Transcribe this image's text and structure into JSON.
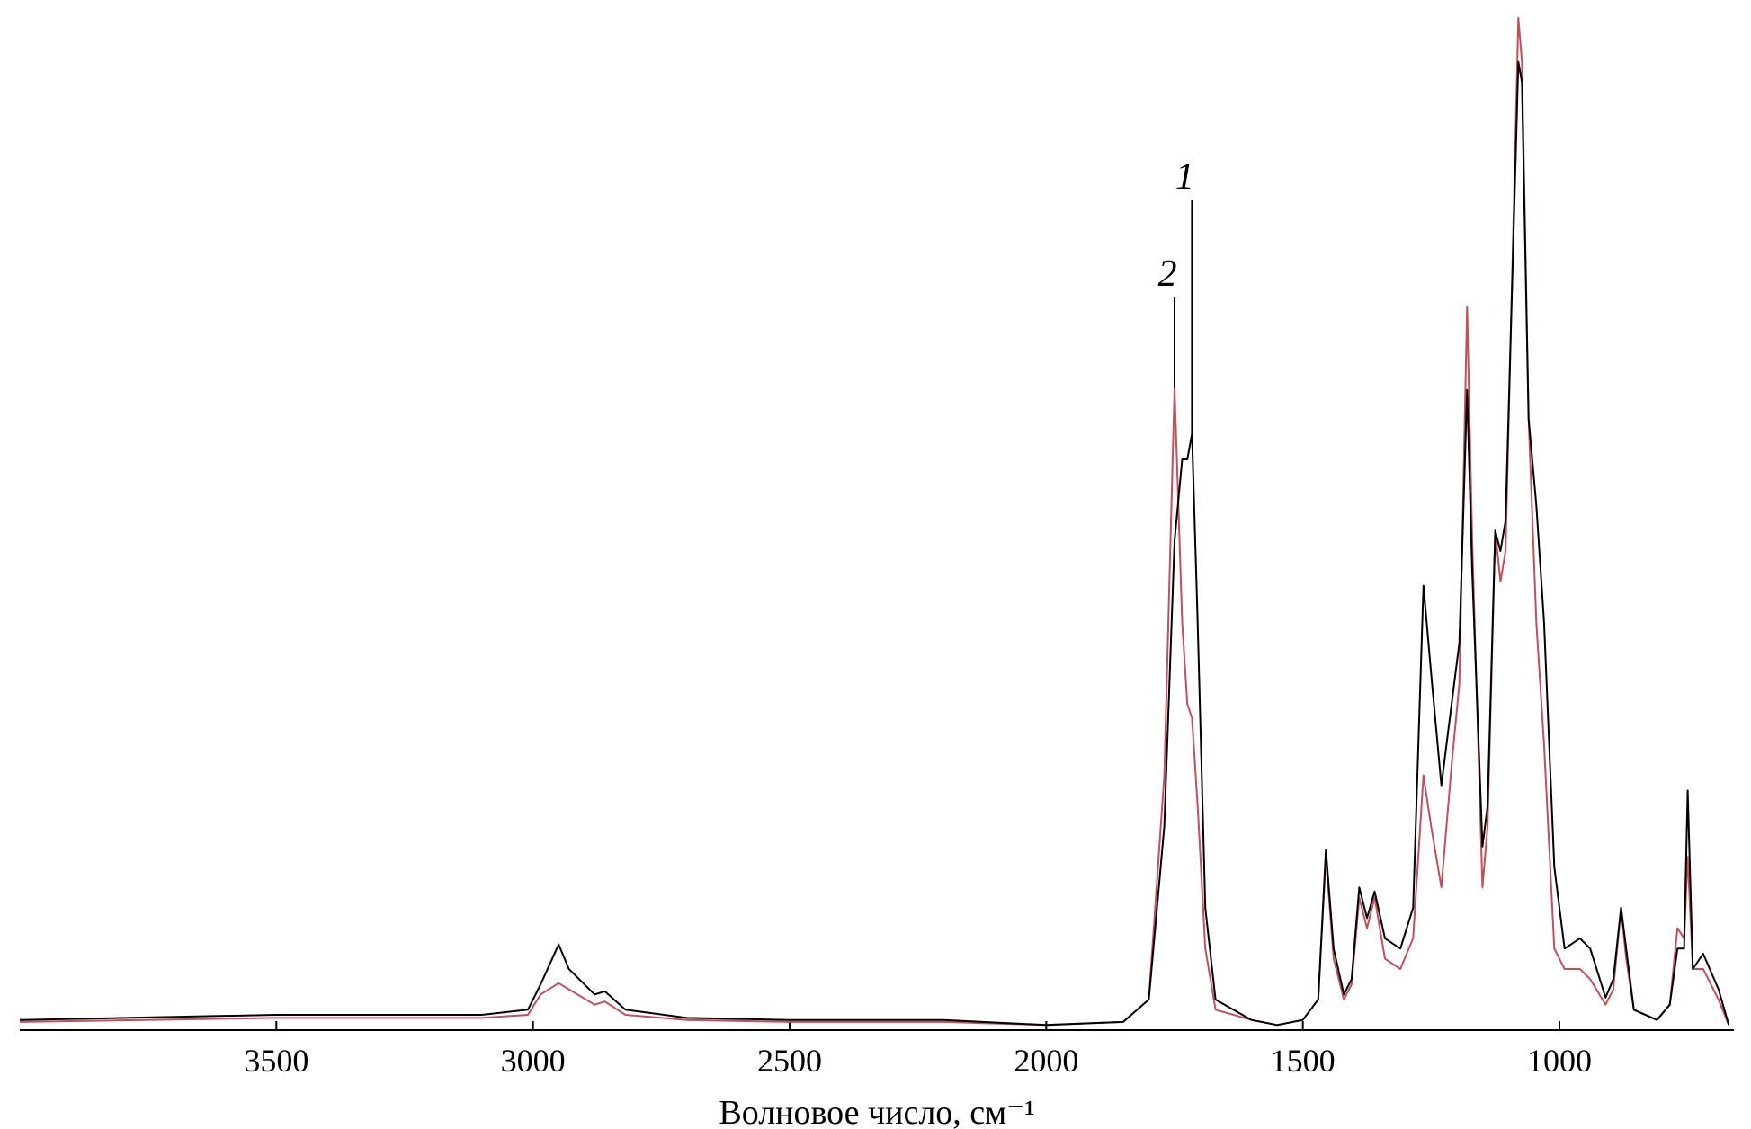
{
  "chart_data": {
    "type": "line",
    "xlabel": "Волновое число, см⁻¹",
    "x": [
      4000,
      3500,
      3100,
      3010,
      2985,
      2950,
      2930,
      2880,
      2860,
      2820,
      2700,
      2500,
      2200,
      2000,
      1850,
      1800,
      1770,
      1750,
      1735,
      1725,
      1716,
      1705,
      1690,
      1670,
      1600,
      1550,
      1500,
      1470,
      1455,
      1440,
      1420,
      1405,
      1390,
      1375,
      1360,
      1340,
      1310,
      1285,
      1265,
      1250,
      1230,
      1210,
      1195,
      1180,
      1170,
      1150,
      1140,
      1125,
      1115,
      1105,
      1080,
      1073,
      1060,
      1045,
      1030,
      1010,
      990,
      960,
      940,
      910,
      895,
      880,
      870,
      855,
      810,
      785,
      770,
      757,
      750,
      740,
      720,
      690,
      670
    ],
    "series": [
      {
        "name": "1",
        "color": "#000000",
        "values": [
          1,
          1.5,
          1.5,
          2,
          4.5,
          8.4,
          6,
          3.5,
          3.8,
          2,
          1.2,
          1,
          1,
          0.5,
          0.8,
          3,
          20,
          48,
          56,
          56,
          58.5,
          40,
          12,
          3,
          1,
          0.5,
          1,
          3,
          17.7,
          8,
          3.5,
          5,
          14,
          11,
          13.6,
          9,
          8,
          12,
          43.6,
          35,
          24,
          32,
          38,
          62.8,
          45,
          18,
          22,
          49,
          47,
          50,
          95,
          93,
          60,
          51.5,
          40,
          16,
          8,
          9,
          8,
          3.2,
          5,
          12,
          8,
          2,
          1,
          2.5,
          8,
          8,
          23.5,
          6,
          7.5,
          4,
          0.5
        ]
      },
      {
        "name": "2",
        "color": "#c0505a",
        "values": [
          0.8,
          1.2,
          1.2,
          1.5,
          3.5,
          4.6,
          4,
          2.5,
          2.8,
          1.5,
          1,
          0.8,
          0.8,
          0.5,
          0.8,
          3,
          25,
          63,
          40,
          32,
          30.6,
          22,
          8,
          2,
          1,
          0.5,
          1,
          3,
          17,
          7,
          3,
          4.5,
          13,
          10,
          13,
          7,
          6,
          9,
          25,
          20,
          14,
          26,
          34,
          71,
          48,
          14,
          20,
          49,
          44,
          47,
          99.3,
          95,
          60,
          40,
          28,
          8,
          6,
          6,
          5,
          2.5,
          4,
          12,
          7,
          2,
          1,
          2.5,
          10,
          9,
          17,
          6,
          6,
          3,
          0.5
        ]
      }
    ],
    "annotations": [
      {
        "text": "1",
        "x": 1716,
        "series": 0
      },
      {
        "text": "2",
        "x": 1750,
        "series": 1
      }
    ],
    "xlim": [
      4000,
      660
    ],
    "ylim": [
      0,
      100
    ],
    "xticks": [
      3500,
      3000,
      2500,
      2000,
      1500,
      1000
    ]
  }
}
